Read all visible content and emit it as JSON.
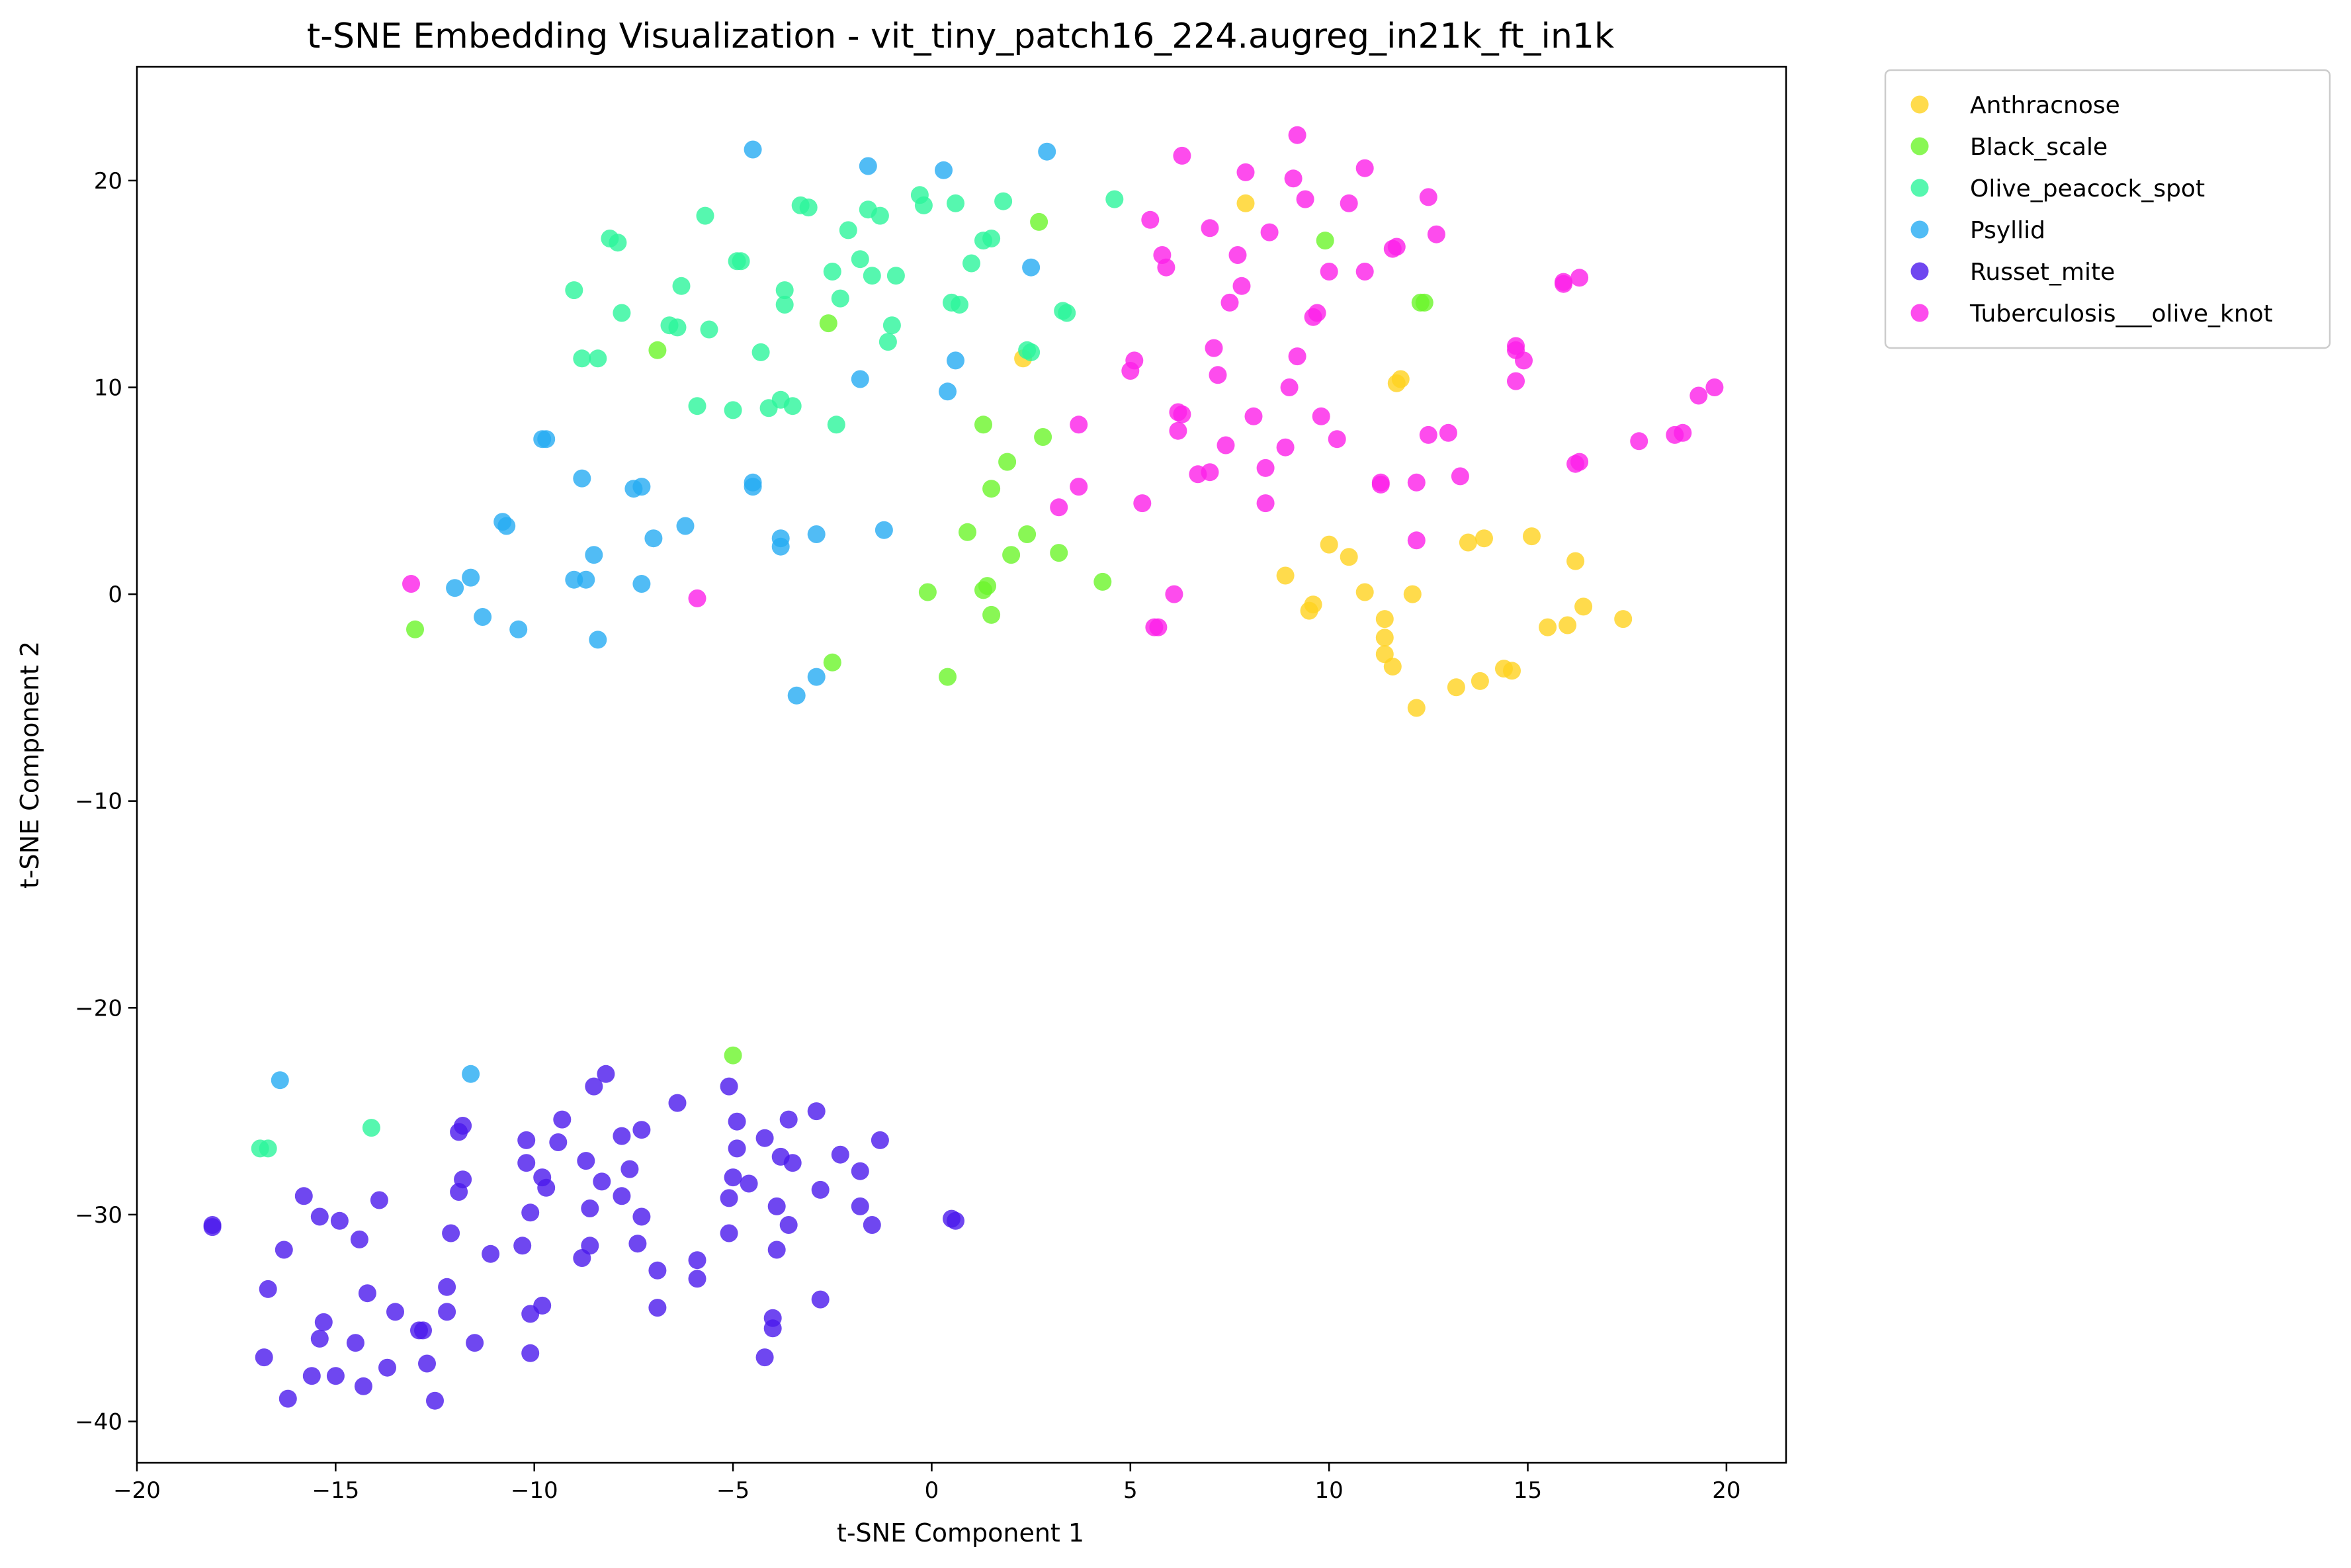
{
  "chart_data": {
    "type": "scatter",
    "title": "t-SNE Embedding Visualization - vit_tiny_patch16_224.augreg_in21k_ft_in1k",
    "xlabel": "t-SNE Component 1",
    "ylabel": "t-SNE Component 2",
    "xlim": [
      -20,
      21.5
    ],
    "ylim": [
      -42,
      25.5
    ],
    "xticks": [
      -20,
      -15,
      -10,
      -5,
      0,
      5,
      10,
      15,
      20
    ],
    "xtick_labels": [
      "−20",
      "−15",
      "−10",
      "−5",
      "0",
      "5",
      "10",
      "15",
      "20"
    ],
    "yticks": [
      -40,
      -30,
      -20,
      -10,
      0,
      10,
      20
    ],
    "ytick_labels": [
      "−40",
      "−30",
      "−20",
      "−10",
      "0",
      "10",
      "20"
    ],
    "grid": false,
    "legend_position": "outside-top-right",
    "series": [
      {
        "name": "Anthracnose",
        "color": "#ffd21f",
        "points": [
          [
            7.9,
            18.9
          ],
          [
            2.3,
            11.4
          ],
          [
            11.8,
            10.4
          ],
          [
            11.7,
            10.2
          ],
          [
            10.0,
            2.4
          ],
          [
            10.5,
            1.8
          ],
          [
            8.9,
            0.9
          ],
          [
            13.5,
            2.5
          ],
          [
            13.9,
            2.7
          ],
          [
            15.1,
            2.8
          ],
          [
            16.2,
            1.6
          ],
          [
            9.6,
            -0.5
          ],
          [
            9.5,
            -0.8
          ],
          [
            10.9,
            0.1
          ],
          [
            12.1,
            0.0
          ],
          [
            11.4,
            -1.2
          ],
          [
            11.4,
            -2.1
          ],
          [
            11.4,
            -2.9
          ],
          [
            11.6,
            -3.5
          ],
          [
            15.5,
            -1.6
          ],
          [
            16.0,
            -1.5
          ],
          [
            16.4,
            -0.6
          ],
          [
            17.4,
            -1.2
          ],
          [
            14.4,
            -3.6
          ],
          [
            14.6,
            -3.7
          ],
          [
            13.8,
            -4.2
          ],
          [
            13.2,
            -4.5
          ],
          [
            12.2,
            -5.5
          ]
        ]
      },
      {
        "name": "Black_scale",
        "color": "#6bf52b",
        "points": [
          [
            -6.9,
            11.8
          ],
          [
            -2.6,
            13.1
          ],
          [
            2.7,
            18.0
          ],
          [
            9.9,
            17.1
          ],
          [
            12.3,
            14.1
          ],
          [
            12.4,
            14.1
          ],
          [
            1.3,
            8.2
          ],
          [
            1.9,
            6.4
          ],
          [
            2.8,
            7.6
          ],
          [
            1.5,
            5.1
          ],
          [
            0.9,
            3.0
          ],
          [
            2.4,
            2.9
          ],
          [
            2.0,
            1.9
          ],
          [
            3.2,
            2.0
          ],
          [
            4.3,
            0.6
          ],
          [
            1.4,
            0.4
          ],
          [
            1.3,
            0.2
          ],
          [
            -0.1,
            0.1
          ],
          [
            1.5,
            -1.0
          ],
          [
            0.4,
            -4.0
          ],
          [
            -2.5,
            -3.3
          ],
          [
            -13.0,
            -1.7
          ],
          [
            -5.0,
            -22.3
          ]
        ]
      },
      {
        "name": "Olive_peacock_spot",
        "color": "#2cf59b",
        "points": [
          [
            -8.1,
            17.2
          ],
          [
            -7.9,
            17.0
          ],
          [
            -9.0,
            14.7
          ],
          [
            -7.8,
            13.6
          ],
          [
            -8.8,
            11.4
          ],
          [
            -8.4,
            11.4
          ],
          [
            -6.6,
            13.0
          ],
          [
            -6.4,
            12.9
          ],
          [
            -5.6,
            12.8
          ],
          [
            -6.3,
            14.9
          ],
          [
            -5.7,
            18.3
          ],
          [
            -4.9,
            16.1
          ],
          [
            -4.8,
            16.1
          ],
          [
            -3.3,
            18.8
          ],
          [
            -3.1,
            18.7
          ],
          [
            -1.6,
            18.6
          ],
          [
            -1.3,
            18.3
          ],
          [
            -0.3,
            19.3
          ],
          [
            -0.2,
            18.8
          ],
          [
            0.6,
            18.9
          ],
          [
            1.8,
            19.0
          ],
          [
            4.6,
            19.1
          ],
          [
            -2.1,
            17.6
          ],
          [
            -1.8,
            16.2
          ],
          [
            -1.5,
            15.4
          ],
          [
            -0.9,
            15.4
          ],
          [
            -2.5,
            15.6
          ],
          [
            -3.7,
            14.7
          ],
          [
            -3.7,
            14.0
          ],
          [
            -2.3,
            14.3
          ],
          [
            -1.1,
            12.2
          ],
          [
            -1.0,
            13.0
          ],
          [
            0.5,
            14.1
          ],
          [
            0.7,
            14.0
          ],
          [
            1.0,
            16.0
          ],
          [
            1.3,
            17.1
          ],
          [
            1.5,
            17.2
          ],
          [
            3.3,
            13.7
          ],
          [
            3.4,
            13.6
          ],
          [
            2.4,
            11.8
          ],
          [
            2.5,
            11.7
          ],
          [
            -4.3,
            11.7
          ],
          [
            -3.8,
            9.4
          ],
          [
            -3.5,
            9.1
          ],
          [
            -4.1,
            9.0
          ],
          [
            -5.0,
            8.9
          ],
          [
            -5.9,
            9.1
          ],
          [
            -2.4,
            8.2
          ],
          [
            -14.1,
            -25.8
          ],
          [
            -16.9,
            -26.8
          ],
          [
            -16.7,
            -26.8
          ]
        ]
      },
      {
        "name": "Psyllid",
        "color": "#25abf2",
        "points": [
          [
            -4.5,
            21.5
          ],
          [
            -1.6,
            20.7
          ],
          [
            0.3,
            20.5
          ],
          [
            2.9,
            21.4
          ],
          [
            2.5,
            15.8
          ],
          [
            -1.8,
            10.4
          ],
          [
            0.4,
            9.8
          ],
          [
            0.6,
            11.3
          ],
          [
            -9.8,
            7.5
          ],
          [
            -9.7,
            7.5
          ],
          [
            -8.8,
            5.6
          ],
          [
            -7.5,
            5.1
          ],
          [
            -7.3,
            5.2
          ],
          [
            -4.5,
            5.2
          ],
          [
            -4.5,
            5.4
          ],
          [
            -10.8,
            3.5
          ],
          [
            -10.7,
            3.3
          ],
          [
            -7.0,
            2.7
          ],
          [
            -6.2,
            3.3
          ],
          [
            -3.8,
            2.7
          ],
          [
            -3.8,
            2.3
          ],
          [
            -2.9,
            2.9
          ],
          [
            -1.2,
            3.1
          ],
          [
            -8.5,
            1.9
          ],
          [
            -11.6,
            0.8
          ],
          [
            -12.0,
            0.3
          ],
          [
            -9.0,
            0.7
          ],
          [
            -8.7,
            0.7
          ],
          [
            -7.3,
            0.5
          ],
          [
            -11.3,
            -1.1
          ],
          [
            -10.4,
            -1.7
          ],
          [
            -8.4,
            -2.2
          ],
          [
            -2.9,
            -4.0
          ],
          [
            -3.4,
            -4.9
          ],
          [
            -16.4,
            -23.5
          ],
          [
            -11.6,
            -23.2
          ]
        ]
      },
      {
        "name": "Russet_mite",
        "color": "#4b19ec",
        "points": [
          [
            -18.1,
            -30.5
          ],
          [
            -18.1,
            -30.6
          ],
          [
            -8.2,
            -23.2
          ],
          [
            -8.5,
            -23.8
          ],
          [
            -5.1,
            -23.8
          ],
          [
            -11.8,
            -25.7
          ],
          [
            -11.9,
            -26.0
          ],
          [
            -9.3,
            -25.4
          ],
          [
            -7.3,
            -25.9
          ],
          [
            -6.4,
            -24.6
          ],
          [
            -4.9,
            -25.5
          ],
          [
            -3.6,
            -25.4
          ],
          [
            -2.9,
            -25.0
          ],
          [
            -10.2,
            -26.4
          ],
          [
            -9.4,
            -26.5
          ],
          [
            -7.8,
            -26.2
          ],
          [
            -4.2,
            -26.3
          ],
          [
            -1.3,
            -26.4
          ],
          [
            -10.2,
            -27.5
          ],
          [
            -9.8,
            -28.2
          ],
          [
            -8.7,
            -27.4
          ],
          [
            -7.6,
            -27.8
          ],
          [
            -4.9,
            -26.8
          ],
          [
            -3.8,
            -27.2
          ],
          [
            -3.5,
            -27.5
          ],
          [
            -2.3,
            -27.1
          ],
          [
            -1.8,
            -27.9
          ],
          [
            -11.8,
            -28.3
          ],
          [
            -11.9,
            -28.9
          ],
          [
            -9.7,
            -28.7
          ],
          [
            -8.3,
            -28.4
          ],
          [
            -7.8,
            -29.1
          ],
          [
            -5.0,
            -28.2
          ],
          [
            -4.6,
            -28.5
          ],
          [
            -2.8,
            -28.8
          ],
          [
            -15.8,
            -29.1
          ],
          [
            -13.9,
            -29.3
          ],
          [
            -15.4,
            -30.1
          ],
          [
            -14.9,
            -30.3
          ],
          [
            -10.1,
            -29.9
          ],
          [
            -8.6,
            -29.7
          ],
          [
            -7.3,
            -30.1
          ],
          [
            -5.1,
            -29.2
          ],
          [
            -3.9,
            -29.6
          ],
          [
            -1.8,
            -29.6
          ],
          [
            -3.6,
            -30.5
          ],
          [
            -1.5,
            -30.5
          ],
          [
            0.5,
            -30.2
          ],
          [
            0.6,
            -30.3
          ],
          [
            -14.4,
            -31.2
          ],
          [
            -12.1,
            -30.9
          ],
          [
            -16.3,
            -31.7
          ],
          [
            -11.1,
            -31.9
          ],
          [
            -10.3,
            -31.5
          ],
          [
            -8.6,
            -31.5
          ],
          [
            -7.4,
            -31.4
          ],
          [
            -5.1,
            -30.9
          ],
          [
            -3.9,
            -31.7
          ],
          [
            -8.8,
            -32.1
          ],
          [
            -6.9,
            -32.7
          ],
          [
            -5.9,
            -32.2
          ],
          [
            -5.9,
            -33.1
          ],
          [
            -16.7,
            -33.6
          ],
          [
            -14.2,
            -33.8
          ],
          [
            -12.2,
            -33.5
          ],
          [
            -13.5,
            -34.7
          ],
          [
            -12.2,
            -34.7
          ],
          [
            -9.8,
            -34.4
          ],
          [
            -10.1,
            -34.8
          ],
          [
            -6.9,
            -34.5
          ],
          [
            -2.8,
            -34.1
          ],
          [
            -15.3,
            -35.2
          ],
          [
            -12.9,
            -35.6
          ],
          [
            -12.8,
            -35.6
          ],
          [
            -15.4,
            -36.0
          ],
          [
            -14.5,
            -36.2
          ],
          [
            -11.5,
            -36.2
          ],
          [
            -10.1,
            -36.7
          ],
          [
            -4.0,
            -35.0
          ],
          [
            -4.0,
            -35.5
          ],
          [
            -16.8,
            -36.9
          ],
          [
            -15.6,
            -37.8
          ],
          [
            -15.0,
            -37.8
          ],
          [
            -14.3,
            -38.3
          ],
          [
            -13.7,
            -37.4
          ],
          [
            -12.7,
            -37.2
          ],
          [
            -4.2,
            -36.9
          ],
          [
            -16.2,
            -38.9
          ],
          [
            -12.5,
            -39.0
          ]
        ]
      },
      {
        "name": "Tuberculosis___olive_knot",
        "color": "#fd1fe9",
        "points": [
          [
            9.2,
            22.2
          ],
          [
            6.3,
            21.2
          ],
          [
            7.9,
            20.4
          ],
          [
            9.1,
            20.1
          ],
          [
            10.9,
            20.6
          ],
          [
            5.5,
            18.1
          ],
          [
            7.0,
            17.7
          ],
          [
            9.4,
            19.1
          ],
          [
            10.5,
            18.9
          ],
          [
            12.5,
            19.2
          ],
          [
            8.5,
            17.5
          ],
          [
            12.7,
            17.4
          ],
          [
            5.8,
            16.4
          ],
          [
            5.9,
            15.8
          ],
          [
            7.7,
            16.4
          ],
          [
            11.6,
            16.7
          ],
          [
            11.7,
            16.8
          ],
          [
            7.5,
            14.1
          ],
          [
            7.8,
            14.9
          ],
          [
            10.0,
            15.6
          ],
          [
            10.9,
            15.6
          ],
          [
            15.9,
            15.0
          ],
          [
            15.9,
            15.1
          ],
          [
            16.3,
            15.3
          ],
          [
            9.6,
            13.4
          ],
          [
            9.7,
            13.6
          ],
          [
            7.1,
            11.9
          ],
          [
            9.2,
            11.5
          ],
          [
            14.7,
            12.0
          ],
          [
            14.7,
            11.8
          ],
          [
            14.9,
            11.3
          ],
          [
            5.1,
            11.3
          ],
          [
            5.0,
            10.8
          ],
          [
            7.2,
            10.6
          ],
          [
            9.0,
            10.0
          ],
          [
            14.7,
            10.3
          ],
          [
            19.7,
            10.0
          ],
          [
            19.3,
            9.6
          ],
          [
            6.3,
            8.7
          ],
          [
            6.2,
            8.8
          ],
          [
            8.1,
            8.6
          ],
          [
            9.8,
            8.6
          ],
          [
            3.7,
            8.2
          ],
          [
            6.2,
            7.9
          ],
          [
            10.2,
            7.5
          ],
          [
            12.5,
            7.7
          ],
          [
            13.0,
            7.8
          ],
          [
            7.4,
            7.2
          ],
          [
            8.9,
            7.1
          ],
          [
            17.8,
            7.4
          ],
          [
            18.7,
            7.7
          ],
          [
            18.9,
            7.8
          ],
          [
            6.7,
            5.8
          ],
          [
            7.0,
            5.9
          ],
          [
            8.4,
            6.1
          ],
          [
            11.3,
            5.4
          ],
          [
            11.3,
            5.3
          ],
          [
            12.2,
            5.4
          ],
          [
            13.3,
            5.7
          ],
          [
            16.2,
            6.3
          ],
          [
            16.3,
            6.4
          ],
          [
            3.7,
            5.2
          ],
          [
            3.2,
            4.2
          ],
          [
            5.3,
            4.4
          ],
          [
            8.4,
            4.4
          ],
          [
            12.2,
            2.6
          ],
          [
            6.1,
            0.0
          ],
          [
            5.6,
            -1.6
          ],
          [
            5.7,
            -1.6
          ],
          [
            -13.1,
            0.5
          ],
          [
            -5.9,
            -0.2
          ]
        ]
      }
    ]
  }
}
